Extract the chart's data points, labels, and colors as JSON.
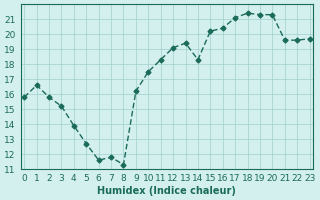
{
  "x": [
    0,
    1,
    2,
    3,
    4,
    5,
    6,
    7,
    8,
    9,
    10,
    11,
    12,
    13,
    14,
    15,
    16,
    17,
    18,
    19,
    20,
    21,
    22,
    23
  ],
  "y": [
    15.8,
    16.6,
    15.8,
    15.2,
    13.9,
    12.7,
    11.6,
    11.8,
    11.3,
    16.2,
    17.5,
    18.3,
    19.1,
    19.4,
    18.3,
    20.2,
    20.4,
    21.1,
    21.4,
    21.3,
    21.3,
    19.6,
    19.6,
    19.7
  ],
  "line_color": "#1a6b5a",
  "marker_color": "#1a6b5a",
  "bg_color": "#d4f0ee",
  "grid_color": "#a0d0cc",
  "xlabel": "Humidex (Indice chaleur)",
  "ylim": [
    11,
    22
  ],
  "xlim_min": -0.3,
  "xlim_max": 23.3,
  "yticks": [
    11,
    12,
    13,
    14,
    15,
    16,
    17,
    18,
    19,
    20,
    21
  ],
  "xticks": [
    0,
    1,
    2,
    3,
    4,
    5,
    6,
    7,
    8,
    9,
    10,
    11,
    12,
    13,
    14,
    15,
    16,
    17,
    18,
    19,
    20,
    21,
    22,
    23
  ],
  "title_color": "#1a6b5a",
  "label_fontsize": 7,
  "tick_fontsize": 6.5
}
